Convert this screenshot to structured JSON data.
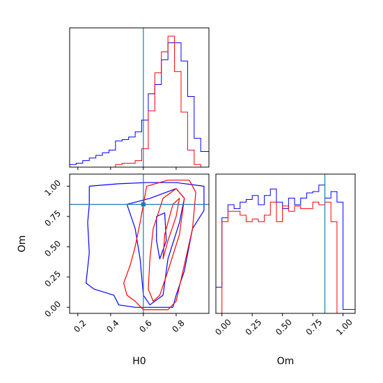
{
  "colors": {
    "series_a": "#0000ff",
    "series_b": "#ff0000",
    "truth": "#1f77b4"
  },
  "chart_data": [
    {
      "panel": "H0 marginal histogram",
      "type": "step-histogram",
      "xlim": [
        0.15,
        1.0
      ],
      "truth_x": 0.6,
      "series": [
        {
          "color_key": "series_a",
          "bins_x": [
            0.15,
            0.19,
            0.23,
            0.27,
            0.31,
            0.35,
            0.39,
            0.43,
            0.47,
            0.51,
            0.55,
            0.59,
            0.63,
            0.67,
            0.71,
            0.75,
            0.79,
            0.83,
            0.87,
            0.91,
            0.95,
            1.0
          ],
          "heights": [
            0.02,
            0.03,
            0.05,
            0.07,
            0.09,
            0.11,
            0.13,
            0.2,
            0.21,
            0.23,
            0.27,
            0.36,
            0.56,
            0.63,
            0.82,
            0.95,
            0.95,
            0.81,
            0.54,
            0.22,
            0.12
          ]
        },
        {
          "color_key": "series_b",
          "bins_x": [
            0.15,
            0.19,
            0.23,
            0.27,
            0.31,
            0.35,
            0.39,
            0.43,
            0.47,
            0.51,
            0.55,
            0.59,
            0.63,
            0.67,
            0.71,
            0.75,
            0.79,
            0.83,
            0.87,
            0.91,
            0.95,
            1.0
          ],
          "heights": [
            0,
            0,
            0,
            0,
            0,
            0,
            0,
            0.02,
            0.03,
            0.03,
            0.05,
            0.14,
            0.43,
            0.72,
            0.88,
            1.0,
            0.73,
            0.42,
            0.13,
            0.02,
            0
          ]
        }
      ]
    },
    {
      "panel": "H0 vs Om 2D contours",
      "type": "contour",
      "xlabel": "H0",
      "ylabel": "Om",
      "xlim": [
        0.15,
        1.0
      ],
      "ylim": [
        -0.05,
        1.1
      ],
      "xticks": [
        "0.2",
        "0.4",
        "0.6",
        "0.8"
      ],
      "yticks": [
        "0.00",
        "0.25",
        "0.50",
        "0.75",
        "1.00"
      ],
      "truth": {
        "x": 0.6,
        "y": 0.85
      },
      "series": [
        {
          "color_key": "series_a",
          "contours": [
            [
              [
                0.27,
                1.0
              ],
              [
                0.45,
                1.02
              ],
              [
                0.62,
                1.03
              ],
              [
                0.8,
                1.03
              ],
              [
                0.97,
                1.0
              ],
              [
                0.97,
                0.8
              ],
              [
                0.9,
                0.65
              ],
              [
                0.85,
                0.3
              ],
              [
                0.8,
                0.1
              ],
              [
                0.78,
                0.0
              ],
              [
                0.55,
                0.0
              ],
              [
                0.45,
                0.02
              ],
              [
                0.42,
                0.1
              ],
              [
                0.3,
                0.15
              ],
              [
                0.25,
                0.2
              ],
              [
                0.27,
                0.45
              ],
              [
                0.26,
                0.7
              ],
              [
                0.27,
                0.85
              ],
              [
                0.27,
                1.0
              ]
            ],
            [
              [
                0.5,
                0.85
              ],
              [
                0.64,
                0.9
              ],
              [
                0.7,
                0.93
              ],
              [
                0.8,
                0.98
              ],
              [
                0.85,
                0.9
              ],
              [
                0.82,
                0.7
              ],
              [
                0.75,
                0.4
              ],
              [
                0.72,
                0.1
              ],
              [
                0.64,
                0.02
              ],
              [
                0.6,
                0.1
              ],
              [
                0.58,
                0.4
              ],
              [
                0.55,
                0.65
              ],
              [
                0.5,
                0.85
              ]
            ],
            [
              [
                0.68,
                0.75
              ],
              [
                0.73,
                0.78
              ],
              [
                0.74,
                0.55
              ],
              [
                0.7,
                0.4
              ],
              [
                0.68,
                0.55
              ],
              [
                0.68,
                0.75
              ]
            ]
          ]
        },
        {
          "color_key": "series_b",
          "contours": [
            [
              [
                0.62,
                1.0
              ],
              [
                0.75,
                1.05
              ],
              [
                0.88,
                1.05
              ],
              [
                0.92,
                0.95
              ],
              [
                0.9,
                0.65
              ],
              [
                0.85,
                0.35
              ],
              [
                0.8,
                0.05
              ],
              [
                0.75,
                -0.02
              ],
              [
                0.6,
                -0.02
              ],
              [
                0.55,
                0.05
              ],
              [
                0.5,
                0.1
              ],
              [
                0.48,
                0.2
              ],
              [
                0.52,
                0.35
              ],
              [
                0.55,
                0.5
              ],
              [
                0.58,
                0.7
              ],
              [
                0.6,
                0.85
              ],
              [
                0.62,
                1.0
              ]
            ],
            [
              [
                0.72,
                0.9
              ],
              [
                0.8,
                0.98
              ],
              [
                0.85,
                0.9
              ],
              [
                0.82,
                0.6
              ],
              [
                0.75,
                0.3
              ],
              [
                0.7,
                0.1
              ],
              [
                0.66,
                0.05
              ],
              [
                0.63,
                0.15
              ],
              [
                0.64,
                0.4
              ],
              [
                0.66,
                0.65
              ],
              [
                0.72,
                0.9
              ]
            ],
            [
              [
                0.78,
                0.85
              ],
              [
                0.82,
                0.9
              ],
              [
                0.8,
                0.75
              ],
              [
                0.75,
                0.55
              ],
              [
                0.72,
                0.4
              ],
              [
                0.73,
                0.6
              ],
              [
                0.78,
                0.85
              ]
            ]
          ]
        }
      ]
    },
    {
      "panel": "Om marginal histogram",
      "type": "step-histogram",
      "xlabel": "Om",
      "xlim": [
        -0.05,
        1.1
      ],
      "xticks": [
        "0.00",
        "0.25",
        "0.50",
        "0.75",
        "1.00"
      ],
      "truth_x": 0.85,
      "series": [
        {
          "color_key": "series_a",
          "bins_x": [
            -0.05,
            0.0,
            0.05,
            0.1,
            0.15,
            0.2,
            0.25,
            0.3,
            0.35,
            0.4,
            0.45,
            0.5,
            0.55,
            0.6,
            0.65,
            0.7,
            0.75,
            0.8,
            0.85,
            0.9,
            0.95,
            1.0,
            1.05,
            1.1
          ],
          "heights": [
            0.2,
            0.73,
            0.83,
            0.8,
            0.85,
            0.87,
            0.9,
            0.83,
            0.9,
            0.95,
            0.85,
            0.8,
            0.88,
            0.83,
            0.88,
            0.92,
            0.93,
            0.98,
            0.88,
            0.93,
            0.85,
            0.03,
            0.03
          ]
        },
        {
          "color_key": "series_b",
          "bins_x": [
            -0.05,
            0.0,
            0.05,
            0.1,
            0.15,
            0.2,
            0.25,
            0.3,
            0.35,
            0.4,
            0.45,
            0.5,
            0.55,
            0.6,
            0.65,
            0.7,
            0.75,
            0.8,
            0.85,
            0.9,
            0.95,
            1.0,
            1.05,
            1.1
          ],
          "heights": [
            0,
            0.7,
            0.78,
            0.78,
            0.75,
            0.7,
            0.72,
            0.7,
            0.75,
            0.85,
            0.7,
            0.82,
            0.78,
            0.82,
            0.8,
            0.8,
            0.85,
            0.83,
            0.85,
            0.7,
            0.0,
            0.0,
            0.0
          ]
        }
      ]
    }
  ]
}
